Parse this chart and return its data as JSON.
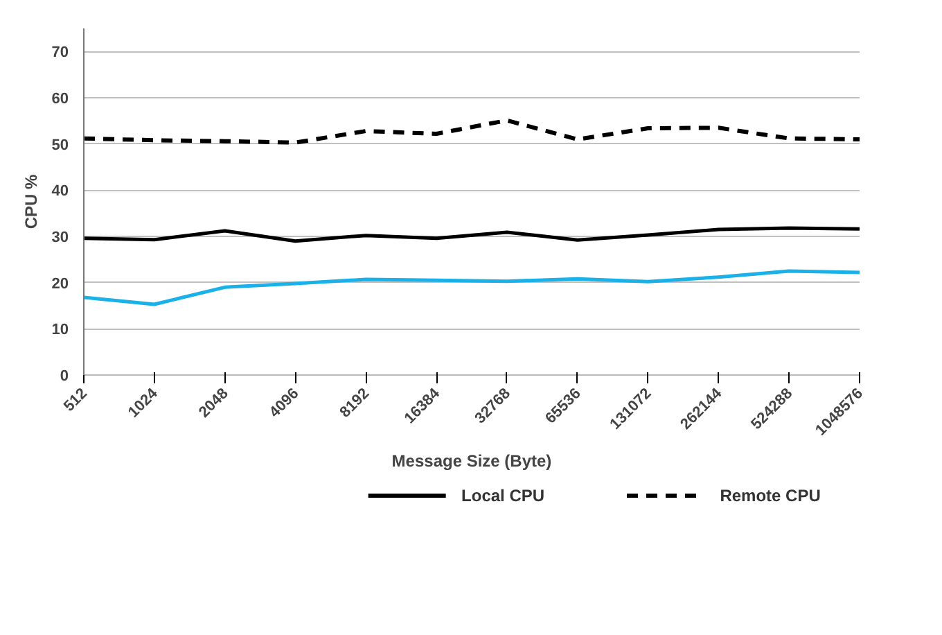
{
  "chart_data": {
    "type": "line",
    "xlabel": "Message Size (Byte)",
    "ylabel": "CPU %",
    "categories": [
      "512",
      "1024",
      "2048",
      "4096",
      "8192",
      "16384",
      "32768",
      "65536",
      "131072",
      "262144",
      "524288",
      "1048576"
    ],
    "ylim": [
      0,
      75
    ],
    "yticks": [
      0,
      10,
      20,
      30,
      40,
      50,
      60,
      70
    ],
    "grid": "y",
    "legend": "bottom",
    "marker": "none",
    "series": [
      {
        "color": "#1ab0e8",
        "line_style": "solid",
        "values": [
          16.8,
          15.3,
          19,
          19.8,
          20.7,
          20.5,
          20.3,
          20.8,
          20.2,
          21.2,
          22.5,
          22.2
        ]
      },
      {
        "name": "Local CPU",
        "color": "#000000",
        "line_style": "solid",
        "values": [
          29.6,
          29.3,
          31.2,
          29,
          30.2,
          29.6,
          30.9,
          29.2,
          30.3,
          31.5,
          31.8,
          31.6
        ]
      },
      {
        "name": "Remote CPU",
        "color": "#000000",
        "line_style": "dashed",
        "values": [
          51.2,
          50.8,
          50.6,
          50.3,
          52.8,
          52.2,
          55.1,
          51,
          53.4,
          53.5,
          51.2,
          51
        ]
      }
    ]
  }
}
